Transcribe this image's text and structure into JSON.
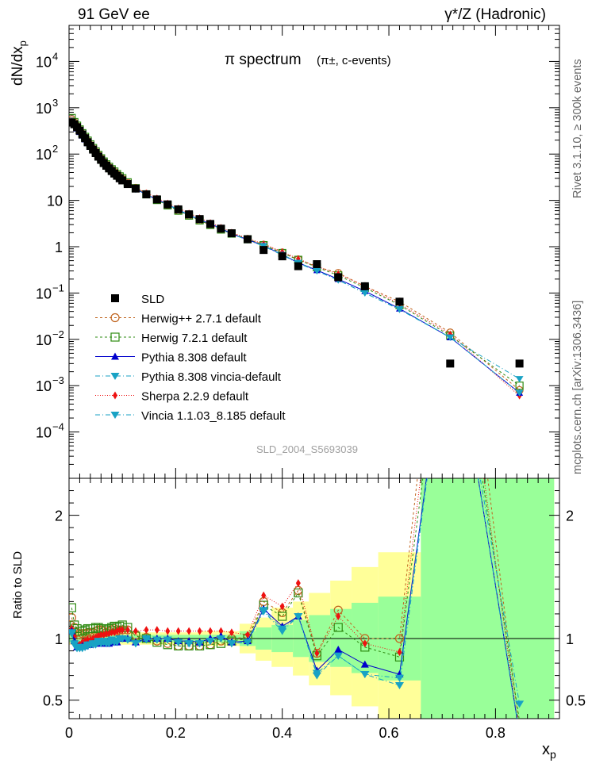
{
  "header": {
    "left_label": "91 GeV ee",
    "right_label": "γ*/Z (Hadronic)"
  },
  "side_labels": {
    "rivet": "Rivet 3.1.10, ≥ 300k events",
    "mcplots": "mcplots.cern.ch [arXiv:1306.3436]"
  },
  "top_panel": {
    "title_main": "π spectrum",
    "title_sub": "(π±, c-events)",
    "analysis_id": "SLD_2004_S5693039",
    "ylabel": "dN/dx",
    "ylabel_sub": "p"
  },
  "bottom_panel": {
    "ylabel": "Ratio to SLD"
  },
  "x_axis": {
    "label": "x",
    "label_sub": "p"
  },
  "colors": {
    "band_yellow": "#ffff99",
    "band_green": "#99ff99",
    "herwigpp": "#c0641e",
    "herwig7": "#2e8b12",
    "pythia": "#0000cc",
    "teal": "#18a2c4",
    "sherpa": "#ee1111"
  },
  "chart_data": {
    "type": "scatter",
    "x_range": [
      0,
      0.92
    ],
    "x_ticks": [
      0,
      0.2,
      0.4,
      0.6,
      0.8
    ],
    "x_tick_labels": [
      "0",
      "0.2",
      "0.4",
      "0.6",
      "0.8"
    ],
    "top_y_scale": "log",
    "top_y_range": [
      1e-05,
      60000
    ],
    "top_y_ticks": [
      0.0001,
      0.001,
      0.01,
      0.1,
      1,
      10,
      100,
      1000,
      10000
    ],
    "top_y_tick_labels": [
      {
        "base": "10",
        "exp": "−4"
      },
      {
        "base": "10",
        "exp": "−3"
      },
      {
        "base": "10",
        "exp": "−2"
      },
      {
        "base": "10",
        "exp": "−1"
      },
      {
        "base": "1",
        "exp": ""
      },
      {
        "base": "10",
        "exp": ""
      },
      {
        "base": "10",
        "exp": "2"
      },
      {
        "base": "10",
        "exp": "3"
      },
      {
        "base": "10",
        "exp": "4"
      }
    ],
    "bottom_y_range": [
      0.35,
      2.3
    ],
    "bottom_y_ticks": [
      0.5,
      1,
      2
    ],
    "bottom_y_tick_labels": [
      "0.5",
      "1",
      "2"
    ],
    "legend_position": "lower-left",
    "data_x": [
      0.005,
      0.01,
      0.015,
      0.02,
      0.025,
      0.03,
      0.035,
      0.04,
      0.045,
      0.05,
      0.055,
      0.06,
      0.065,
      0.07,
      0.075,
      0.08,
      0.085,
      0.09,
      0.095,
      0.1,
      0.11,
      0.125,
      0.145,
      0.165,
      0.185,
      0.205,
      0.225,
      0.245,
      0.265,
      0.285,
      0.305,
      0.335,
      0.365,
      0.4,
      0.43,
      0.465,
      0.505,
      0.555,
      0.62,
      0.715,
      0.845
    ],
    "data_y": [
      480,
      440,
      380,
      320,
      265,
      220,
      180,
      150,
      125,
      105,
      88,
      75,
      64,
      56,
      49,
      43,
      38,
      34,
      30,
      27,
      22.5,
      18,
      13.5,
      10.5,
      8.2,
      6.4,
      5.0,
      3.95,
      3.1,
      2.45,
      1.95,
      1.45,
      0.85,
      0.62,
      0.38,
      0.42,
      0.22,
      0.14,
      0.065,
      0.003,
      0.003
    ],
    "bands": [
      {
        "x0": 0.0,
        "x1": 0.12,
        "yellow": [
          0.95,
          1.05
        ],
        "green": [
          0.97,
          1.03
        ]
      },
      {
        "x0": 0.12,
        "x1": 0.25,
        "yellow": [
          0.95,
          1.05
        ],
        "green": [
          0.97,
          1.03
        ]
      },
      {
        "x0": 0.25,
        "x1": 0.32,
        "yellow": [
          0.94,
          1.06
        ],
        "green": [
          0.97,
          1.03
        ]
      },
      {
        "x0": 0.32,
        "x1": 0.35,
        "yellow": [
          0.88,
          1.12
        ],
        "green": [
          0.94,
          1.06
        ]
      },
      {
        "x0": 0.35,
        "x1": 0.38,
        "yellow": [
          0.82,
          1.17
        ],
        "green": [
          0.91,
          1.09
        ]
      },
      {
        "x0": 0.38,
        "x1": 0.42,
        "yellow": [
          0.77,
          1.25
        ],
        "green": [
          0.89,
          1.11
        ]
      },
      {
        "x0": 0.42,
        "x1": 0.45,
        "yellow": [
          0.7,
          1.3
        ],
        "green": [
          0.85,
          1.15
        ]
      },
      {
        "x0": 0.45,
        "x1": 0.49,
        "yellow": [
          0.62,
          1.37
        ],
        "green": [
          0.81,
          1.19
        ]
      },
      {
        "x0": 0.49,
        "x1": 0.53,
        "yellow": [
          0.54,
          1.47
        ],
        "green": [
          0.77,
          1.24
        ]
      },
      {
        "x0": 0.53,
        "x1": 0.58,
        "yellow": [
          0.45,
          1.58
        ],
        "green": [
          0.72,
          1.29
        ]
      },
      {
        "x0": 0.58,
        "x1": 0.66,
        "yellow": [
          0.35,
          1.7
        ],
        "green": [
          0.66,
          1.34
        ]
      },
      {
        "x0": 0.66,
        "x1": 0.91,
        "yellow": [
          0.35,
          2.3
        ],
        "green": [
          0.35,
          2.3
        ]
      }
    ],
    "series": [
      {
        "key": "herwigpp",
        "name": "Herwig++ 2.7.1 default",
        "marker": "open-circle",
        "dash": "3,3",
        "values": [
          560,
          480,
          400,
          330,
          275,
          228,
          189,
          157,
          131,
          111,
          94,
          80,
          68,
          59,
          52,
          46,
          41,
          36,
          32,
          29,
          24,
          18.5,
          13.7,
          10.3,
          7.9,
          6.0,
          4.7,
          3.7,
          2.95,
          2.4,
          1.95,
          1.47,
          1.1,
          0.75,
          0.53,
          0.37,
          0.27,
          0.14,
          0.065,
          0.014,
          0.0008
        ]
      },
      {
        "key": "herwig7",
        "name": "Herwig 7.2.1 default",
        "marker": "open-square",
        "dash": "3,3",
        "values": [
          600,
          490,
          410,
          340,
          282,
          235,
          195,
          162,
          135,
          114,
          96,
          81,
          69,
          60,
          53,
          47,
          42,
          37,
          33,
          30,
          24.5,
          18.3,
          13.5,
          10.2,
          7.8,
          6.0,
          4.7,
          3.7,
          2.95,
          2.35,
          1.92,
          1.45,
          1.08,
          0.73,
          0.52,
          0.36,
          0.24,
          0.13,
          0.055,
          0.012,
          0.001
        ]
      },
      {
        "key": "pythia",
        "name": "Pythia 8.308 default",
        "marker": "triangle-up",
        "dash": "",
        "values": [
          510,
          430,
          355,
          298,
          248,
          206,
          171,
          143,
          120,
          101,
          85,
          72,
          62,
          54,
          47,
          42,
          37,
          33,
          30,
          27,
          22.5,
          17.5,
          13.5,
          10.5,
          8.2,
          6.3,
          4.9,
          3.85,
          3.1,
          2.5,
          1.9,
          1.42,
          1.05,
          0.68,
          0.45,
          0.31,
          0.2,
          0.11,
          0.046,
          0.011,
          0.0007
        ]
      },
      {
        "key": "pythiavincia",
        "name": "Pythia 8.308 vincia-default",
        "marker": "triangle-down",
        "dash": "6,3,1,3",
        "values": [
          500,
          420,
          350,
          295,
          245,
          204,
          170,
          142,
          119,
          100,
          85,
          72,
          62,
          54,
          47,
          42,
          37,
          33,
          30,
          27,
          22.3,
          17.3,
          13.4,
          10.4,
          8.1,
          6.2,
          4.8,
          3.8,
          3.05,
          2.45,
          1.88,
          1.4,
          1.03,
          0.66,
          0.44,
          0.3,
          0.19,
          0.1,
          0.044,
          0.011,
          0.0014
        ]
      },
      {
        "key": "sherpa",
        "name": "Sherpa 2.2.9 default",
        "marker": "diamond",
        "dash": "1,2",
        "values": [
          520,
          450,
          365,
          305,
          258,
          215,
          178,
          149,
          125,
          106,
          90,
          77,
          66,
          58,
          51,
          45,
          40,
          36,
          32,
          29,
          24,
          19,
          14.5,
          11.2,
          8.7,
          6.8,
          5.3,
          4.2,
          3.3,
          2.6,
          2.05,
          1.5,
          1.15,
          0.78,
          0.55,
          0.37,
          0.26,
          0.14,
          0.058,
          0.013,
          0.0006
        ]
      },
      {
        "key": "vincia",
        "name": "Vincia 1.1.03_8.185 default",
        "marker": "triangle-down",
        "dash": "6,3,1,3",
        "values": [
          505,
          425,
          352,
          297,
          247,
          205,
          171,
          143,
          120,
          101,
          86,
          73,
          63,
          55,
          48,
          43,
          38,
          34,
          30,
          27,
          22.4,
          17.4,
          13.5,
          10.4,
          8.1,
          6.2,
          4.8,
          3.8,
          3.05,
          2.45,
          1.88,
          1.4,
          1.04,
          0.67,
          0.45,
          0.3,
          0.19,
          0.1,
          0.045,
          0.011,
          0.0007
        ]
      }
    ],
    "ratios": {
      "herwigpp": [
        1.17,
        1.09,
        1.05,
        1.03,
        1.04,
        1.04,
        1.05,
        1.05,
        1.05,
        1.06,
        1.07,
        1.07,
        1.06,
        1.05,
        1.06,
        1.07,
        1.08,
        1.06,
        1.07,
        1.07,
        1.07,
        1.03,
        1.01,
        0.98,
        0.96,
        0.94,
        0.94,
        0.94,
        0.95,
        0.98,
        1.0,
        1.01,
        1.3,
        1.21,
        1.39,
        0.88,
        1.23,
        1.0,
        1.0,
        4.7,
        0.27
      ],
      "herwig7": [
        1.25,
        1.11,
        1.08,
        1.06,
        1.06,
        1.07,
        1.08,
        1.08,
        1.08,
        1.09,
        1.09,
        1.08,
        1.08,
        1.07,
        1.08,
        1.09,
        1.1,
        1.09,
        1.1,
        1.11,
        1.09,
        1.02,
        1.0,
        0.97,
        0.95,
        0.94,
        0.94,
        0.94,
        0.95,
        0.96,
        0.98,
        1.0,
        1.27,
        1.18,
        1.37,
        0.86,
        1.09,
        0.93,
        0.85,
        4.0,
        0.33
      ],
      "pythia": [
        1.06,
        0.98,
        0.93,
        0.93,
        0.94,
        0.94,
        0.95,
        0.95,
        0.96,
        0.96,
        0.97,
        0.96,
        0.97,
        0.96,
        0.96,
        0.98,
        0.97,
        0.97,
        1.0,
        1.0,
        1.0,
        0.97,
        1.0,
        1.0,
        1.0,
        0.98,
        0.98,
        0.97,
        1.0,
        1.02,
        0.97,
        0.98,
        1.24,
        1.1,
        1.18,
        0.74,
        0.91,
        0.79,
        0.71,
        3.7,
        0.23
      ],
      "pythiavincia": [
        1.04,
        0.95,
        0.92,
        0.92,
        0.92,
        0.93,
        0.94,
        0.95,
        0.95,
        0.95,
        0.97,
        0.96,
        0.97,
        0.96,
        0.96,
        0.98,
        0.97,
        0.97,
        1.0,
        1.0,
        0.99,
        0.96,
        0.99,
        0.99,
        0.99,
        0.97,
        0.96,
        0.96,
        0.98,
        1.0,
        0.96,
        0.97,
        1.22,
        1.06,
        1.18,
        0.7,
        0.86,
        0.71,
        0.68,
        3.7,
        0.47
      ],
      "sherpa": [
        1.08,
        1.02,
        0.96,
        0.95,
        0.97,
        0.98,
        0.99,
        0.99,
        1.0,
        1.01,
        1.02,
        1.03,
        1.03,
        1.04,
        1.04,
        1.05,
        1.05,
        1.06,
        1.07,
        1.07,
        1.07,
        1.06,
        1.07,
        1.07,
        1.06,
        1.06,
        1.06,
        1.06,
        1.06,
        1.06,
        1.05,
        1.03,
        1.35,
        1.26,
        1.45,
        0.88,
        1.18,
        0.96,
        0.89,
        4.3,
        0.2
      ],
      "vincia": [
        1.05,
        0.96,
        0.93,
        0.93,
        0.93,
        0.93,
        0.95,
        0.95,
        0.96,
        0.96,
        0.98,
        0.97,
        0.98,
        0.97,
        0.97,
        0.99,
        0.98,
        0.98,
        1.0,
        1.0,
        0.99,
        0.96,
        1.0,
        0.99,
        0.99,
        0.97,
        0.96,
        0.96,
        0.98,
        1.0,
        0.96,
        0.97,
        1.23,
        1.08,
        1.18,
        0.72,
        0.86,
        0.71,
        0.62,
        3.7,
        0.22
      ]
    }
  }
}
